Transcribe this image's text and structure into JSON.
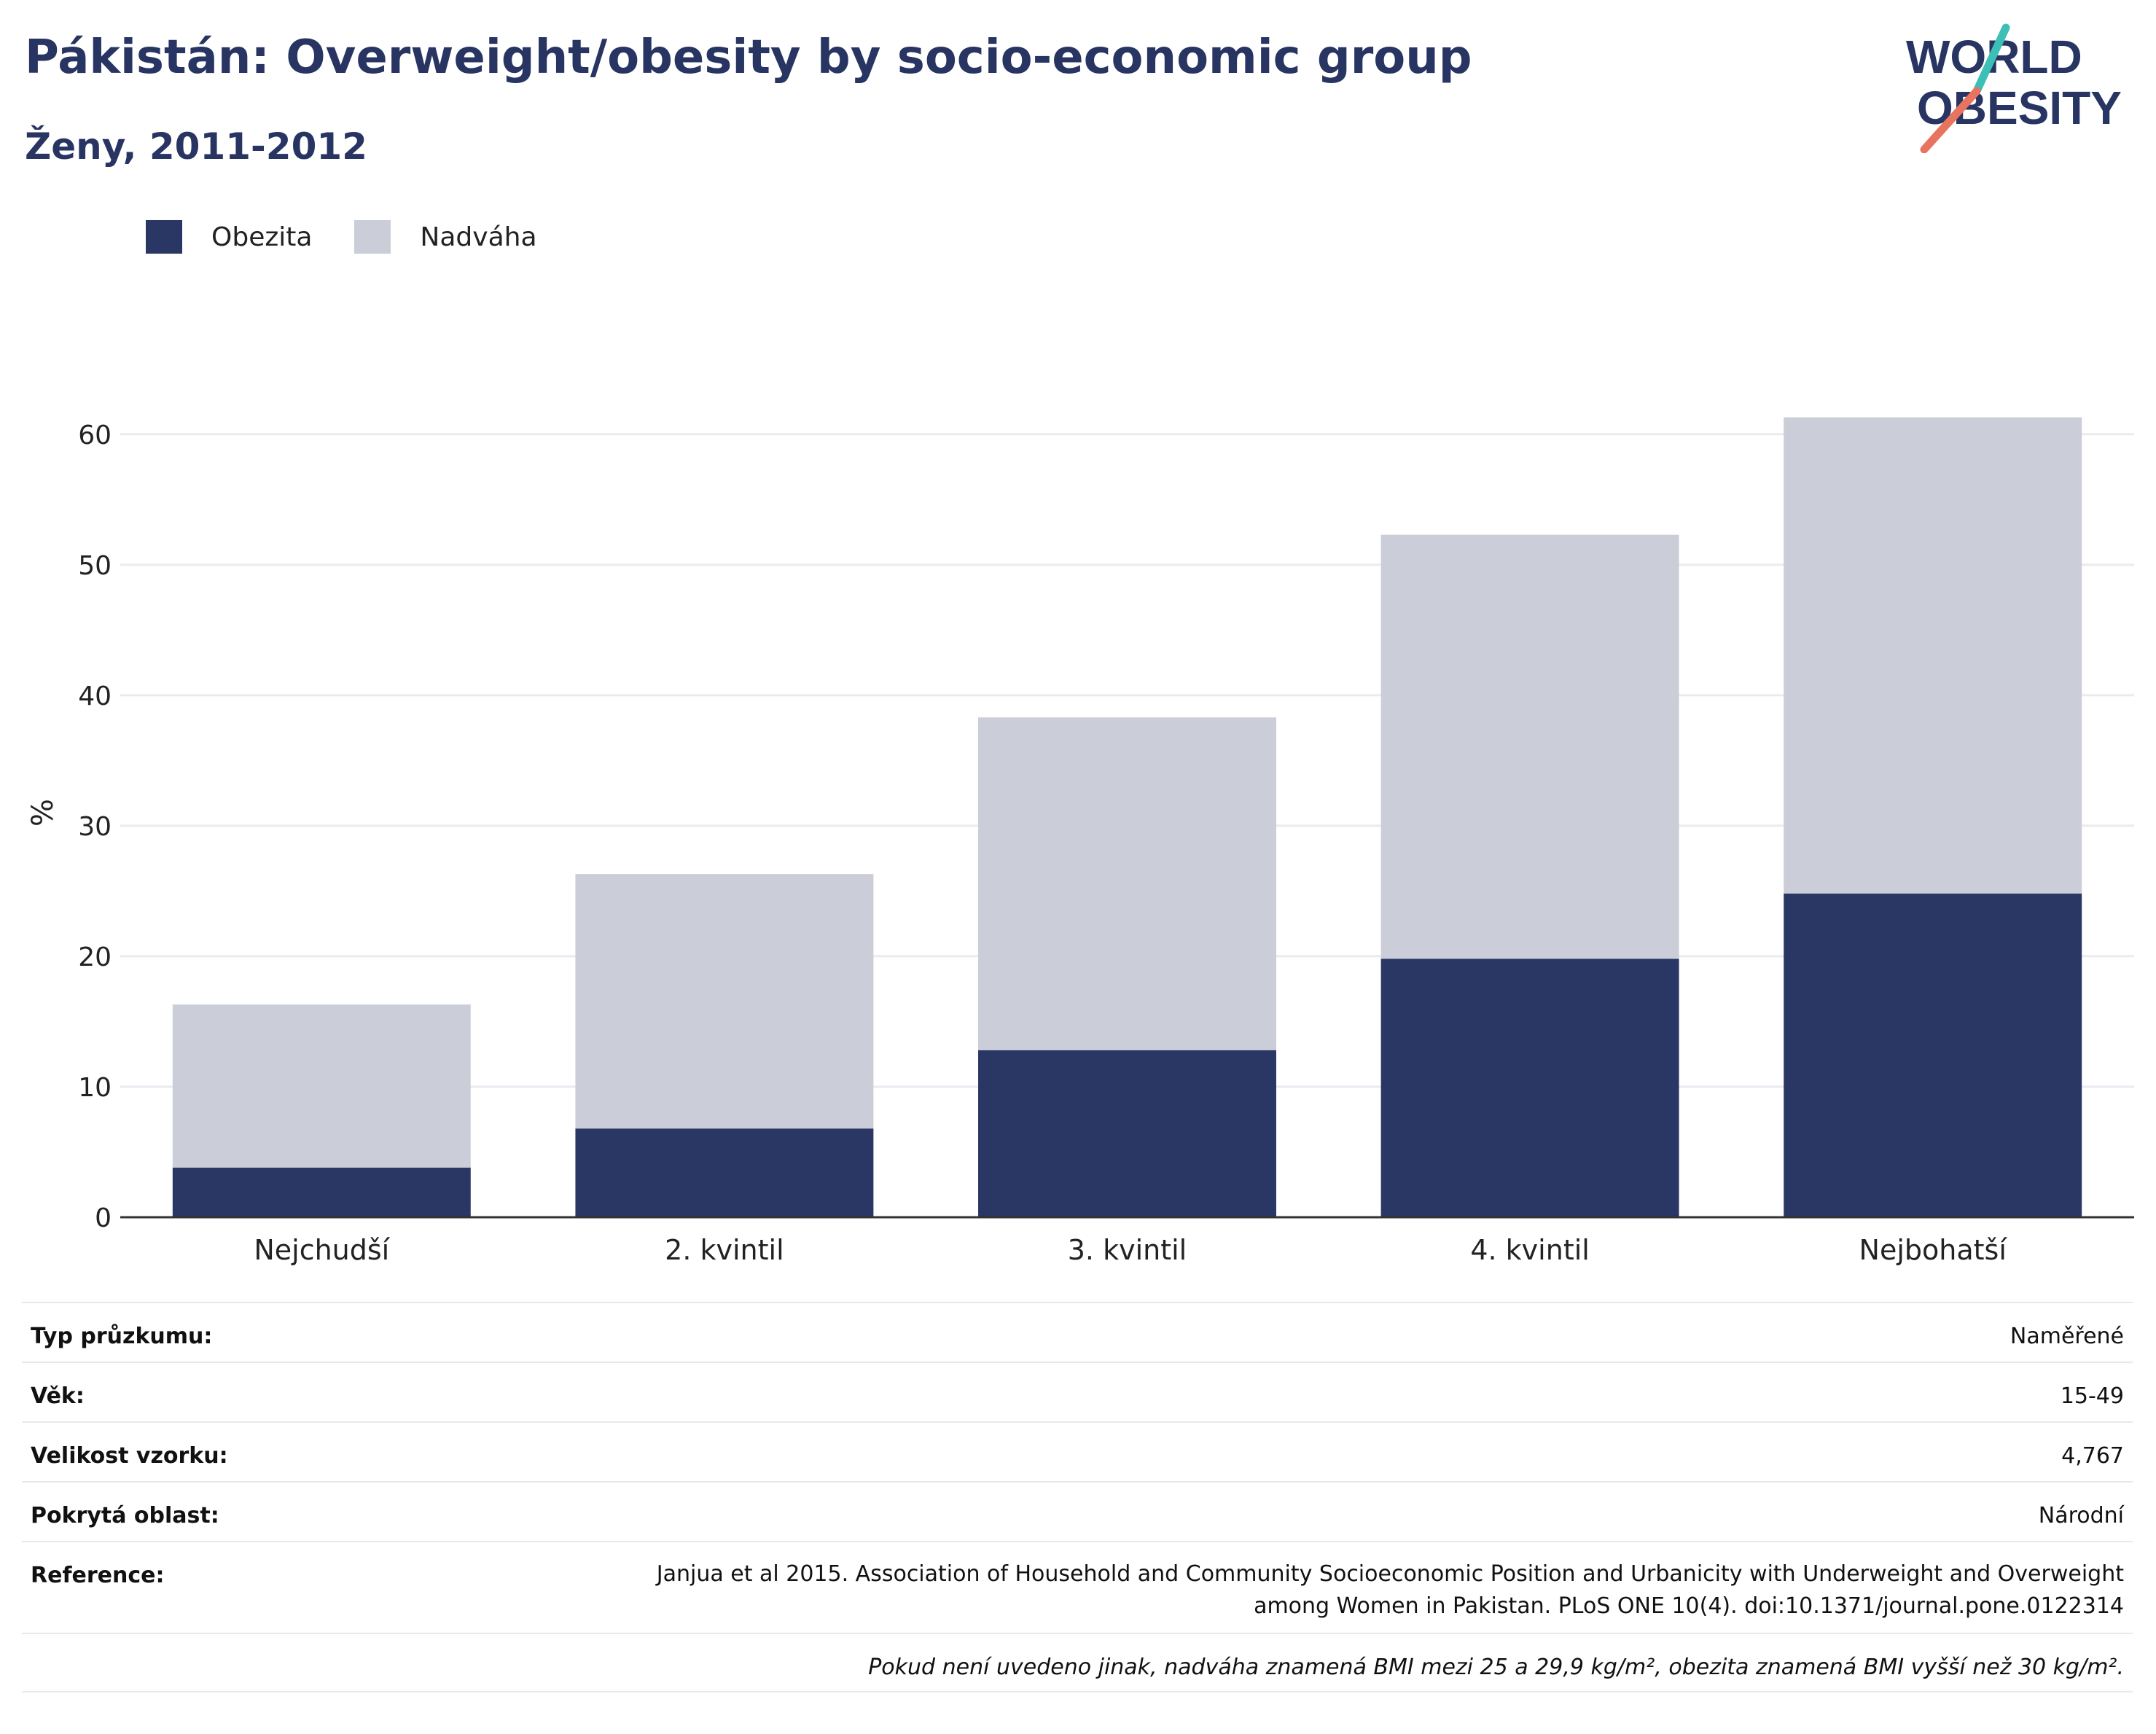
{
  "header": {
    "title": "Pákistán: Overweight/obesity by socio-economic group",
    "subtitle": "Ženy, 2011-2012"
  },
  "logo": {
    "line1": "WORLD",
    "line2": "OBESITY",
    "accent_teal": "#3bbfb6",
    "accent_red": "#e8735f",
    "text_color": "#283562"
  },
  "colors": {
    "obesity": "#2a3663",
    "overweight": "#cbcdd8",
    "grid": "#e9ebf0",
    "axis": "#333333"
  },
  "legend": {
    "items": [
      {
        "label": "Obezita",
        "color": "#2a3663"
      },
      {
        "label": "Nadváha",
        "color": "#cbcdd8"
      }
    ]
  },
  "chart_data": {
    "type": "bar",
    "stacked": true,
    "categories": [
      "Nejchudší",
      "2. kvintil",
      "3. kvintil",
      "4. kvintil",
      "Nejbohatší"
    ],
    "series": [
      {
        "name": "Obezita",
        "values": [
          3.8,
          6.8,
          12.8,
          19.8,
          24.8
        ]
      },
      {
        "name": "Nadváha",
        "values": [
          12.5,
          19.5,
          25.5,
          32.5,
          36.5
        ]
      }
    ],
    "totals": [
      16.3,
      26.3,
      38.3,
      52.3,
      61.3
    ],
    "ylabel": "%",
    "ylim": [
      0,
      62
    ],
    "yticks": [
      0,
      10,
      20,
      30,
      40,
      50,
      60
    ],
    "grid": true,
    "legend_position": "top-left"
  },
  "info": {
    "rows": [
      {
        "label": "Typ průzkumu:",
        "value": "Naměřené"
      },
      {
        "label": "Věk:",
        "value": "15-49"
      },
      {
        "label": "Velikost vzorku:",
        "value": "4,767"
      },
      {
        "label": "Pokrytá oblast:",
        "value": "Národní"
      }
    ],
    "reference_label": "Reference:",
    "reference_line1": "Janjua et al 2015. Association of Household and Community Socioeconomic Position and Urbanicity with Underweight and Overweight",
    "reference_line2": "among Women in Pakistan. PLoS ONE 10(4). doi:10.1371/journal.pone.0122314",
    "note": "Pokud není uvedeno jinak, nadváha znamená BMI mezi 25 a 29,9 kg/m², obezita znamená BMI vyšší než 30 kg/m²."
  }
}
